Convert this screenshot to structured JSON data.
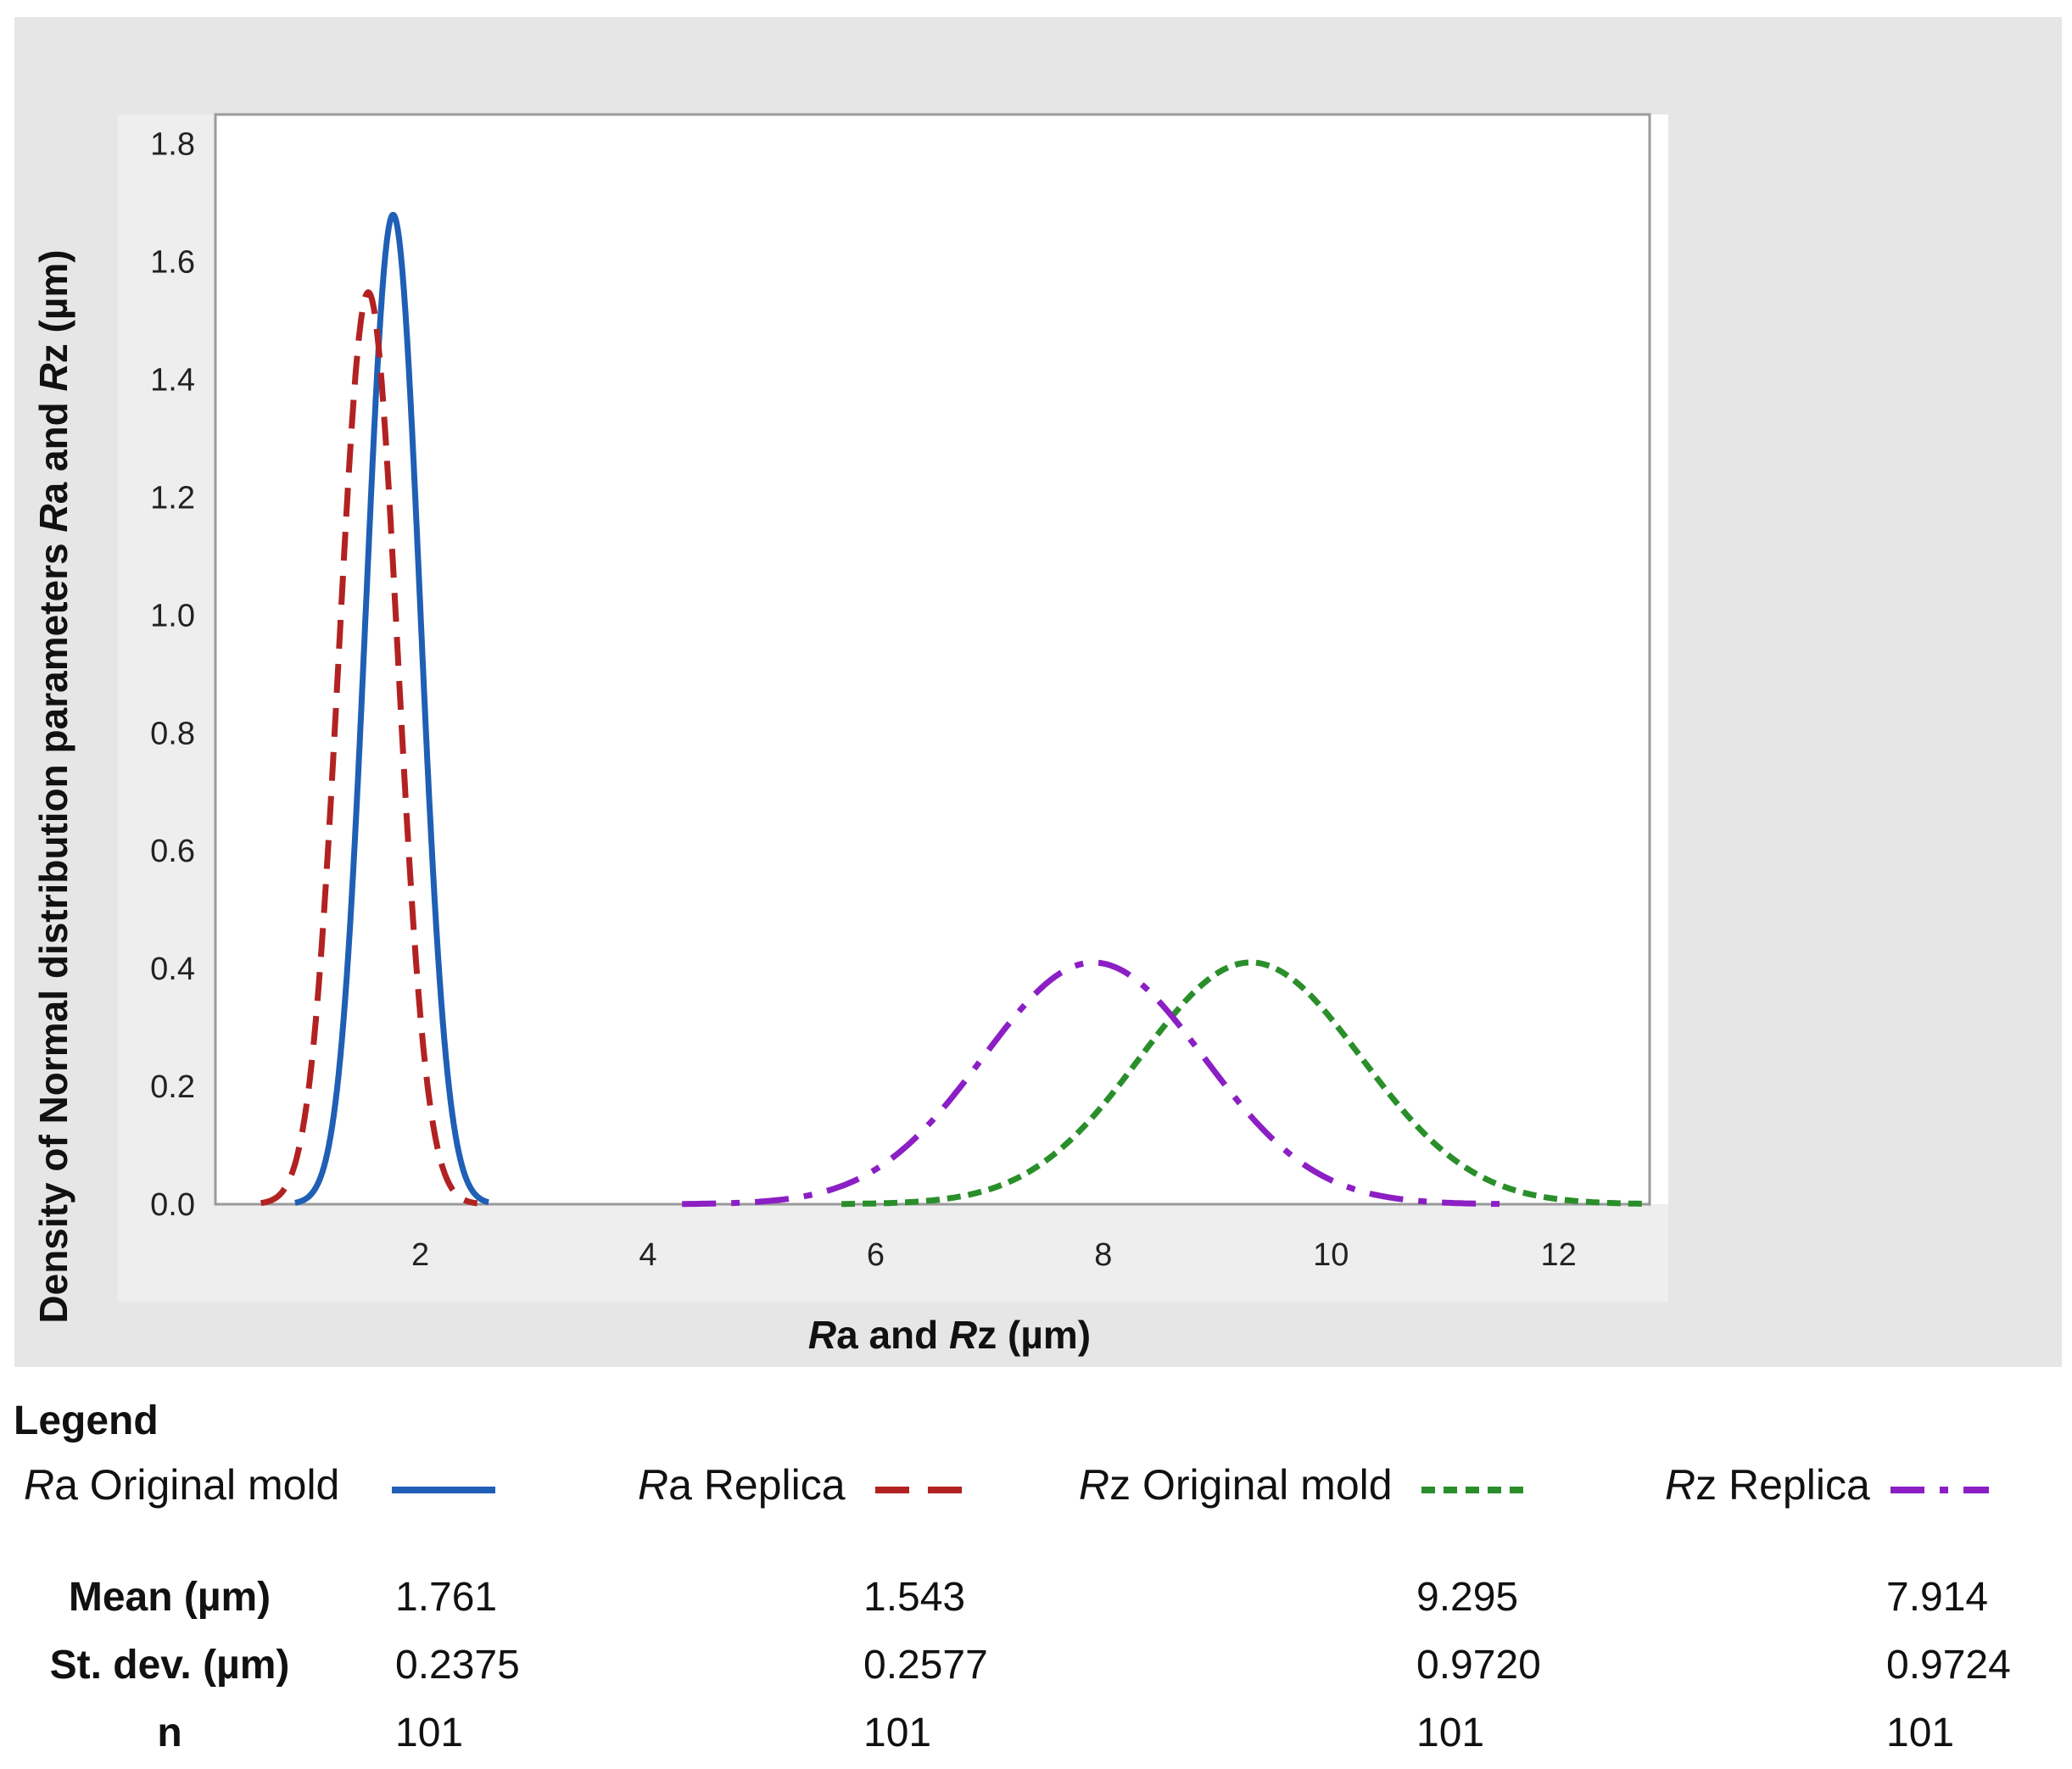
{
  "chart_data": {
    "type": "line",
    "xlabel_parts": [
      {
        "text": "R",
        "italic": true
      },
      {
        "text": "a and ",
        "italic": false
      },
      {
        "text": "R",
        "italic": true
      },
      {
        "text": "z (µm)",
        "italic": false
      }
    ],
    "ylabel_parts": [
      {
        "text": "Density of Normal distribution parameters ",
        "italic": false
      },
      {
        "text": "R",
        "italic": true
      },
      {
        "text": "a and ",
        "italic": false
      },
      {
        "text": "R",
        "italic": true
      },
      {
        "text": "z (µm)",
        "italic": false
      }
    ],
    "xlim": [
      0.2,
      12.8
    ],
    "ylim": [
      0,
      1.85
    ],
    "xticks": [
      2,
      4,
      6,
      8,
      10,
      12
    ],
    "yticks": [
      "0.0",
      "0.2",
      "0.4",
      "0.6",
      "0.8",
      "1.0",
      "1.2",
      "1.4",
      "1.6",
      "1.8"
    ],
    "grid": false,
    "series": [
      {
        "name_italic": "R",
        "name_rest": "a Original mold",
        "color": "#1f5fb5",
        "dash": "solid",
        "mean": 1.761,
        "sd": 0.2375,
        "x_range": [
          0.9,
          2.6
        ]
      },
      {
        "name_italic": "R",
        "name_rest": "a Replica",
        "color": "#b22222",
        "dash": "dashed",
        "mean": 1.543,
        "sd": 0.2577,
        "x_range": [
          0.6,
          2.5
        ]
      },
      {
        "name_italic": "R",
        "name_rest": "z Original mold",
        "color": "#2a8f2a",
        "dash": "dotted",
        "mean": 9.295,
        "sd": 0.972,
        "x_range": [
          5.7,
          12.8
        ]
      },
      {
        "name_italic": "R",
        "name_rest": "z Replica",
        "color": "#8b1fc4",
        "dash": "dashdot",
        "mean": 7.914,
        "sd": 0.9724,
        "x_range": [
          4.3,
          11.5
        ]
      }
    ]
  },
  "legend": {
    "title": "Legend",
    "stat_labels": {
      "mean": "Mean (µm)",
      "sd": "St. dev. (µm)",
      "n": "n"
    },
    "stats": [
      {
        "mean": "1.761",
        "sd": "0.2375",
        "n": "101"
      },
      {
        "mean": "1.543",
        "sd": "0.2577",
        "n": "101"
      },
      {
        "mean": "9.295",
        "sd": "0.9720",
        "n": "101"
      },
      {
        "mean": "7.914",
        "sd": "0.9724",
        "n": "101"
      }
    ]
  }
}
